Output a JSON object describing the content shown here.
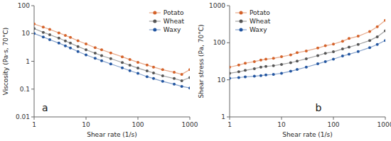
{
  "chart_data": [
    {
      "type": "line",
      "marker": "circle",
      "log": true,
      "grid": false,
      "legend": "upper right",
      "x_label": "Shear rate (1/s)",
      "y_label": "Viscosity (Pa·s, 70°C)",
      "annotation": "a",
      "x": [
        1,
        1.5,
        2,
        3,
        4,
        5,
        7,
        10,
        15,
        20,
        30,
        50,
        70,
        100,
        150,
        200,
        300,
        500,
        700,
        1000
      ],
      "series": [
        {
          "name": "Potato",
          "color": "#D4622A",
          "values": [
            22,
            17,
            14,
            10.5,
            8.5,
            7.2,
            5.5,
            4.2,
            3.1,
            2.6,
            2.0,
            1.45,
            1.15,
            0.92,
            0.73,
            0.62,
            0.5,
            0.4,
            0.34,
            0.5
          ]
        },
        {
          "name": "Wheat",
          "color": "#555555",
          "values": [
            15,
            11,
            9.0,
            6.8,
            5.4,
            4.5,
            3.4,
            2.6,
            1.95,
            1.6,
            1.25,
            0.9,
            0.72,
            0.57,
            0.45,
            0.38,
            0.3,
            0.24,
            0.2,
            0.26
          ]
        },
        {
          "name": "Waxy",
          "color": "#2255A0",
          "values": [
            10,
            7.5,
            6.0,
            4.5,
            3.6,
            3.0,
            2.25,
            1.7,
            1.28,
            1.05,
            0.8,
            0.58,
            0.46,
            0.37,
            0.28,
            0.24,
            0.19,
            0.15,
            0.125,
            0.11
          ]
        }
      ],
      "xlim": [
        1,
        1000
      ],
      "xticks": [
        1,
        10,
        100,
        1000
      ],
      "ylim": [
        0.01,
        100
      ],
      "yticks": [
        0.01,
        0.1,
        1,
        10,
        100
      ]
    },
    {
      "type": "line",
      "marker": "circle",
      "log": true,
      "grid": false,
      "legend": "upper left",
      "x_label": "Shear rate (1/s)",
      "y_label": "Shear stress (Pa, 70°C)",
      "annotation": "b",
      "x": [
        1,
        1.5,
        2,
        3,
        4,
        5,
        7,
        10,
        15,
        20,
        30,
        50,
        70,
        100,
        150,
        200,
        300,
        500,
        700,
        1000
      ],
      "series": [
        {
          "name": "Potato",
          "color": "#D4622A",
          "values": [
            22,
            25,
            28,
            31,
            34,
            36,
            38,
            42,
            47,
            54,
            60,
            72,
            83,
            92,
            110,
            130,
            150,
            200,
            270,
            400
          ]
        },
        {
          "name": "Wheat",
          "color": "#555555",
          "values": [
            15,
            16.5,
            18,
            20,
            22,
            23,
            24,
            26,
            29,
            32,
            37,
            45,
            52,
            57,
            68,
            76,
            90,
            115,
            145,
            210
          ]
        },
        {
          "name": "Waxy",
          "color": "#2255A0",
          "values": [
            11,
            11.5,
            12,
            12.5,
            13,
            13.5,
            14,
            15,
            17,
            19,
            22,
            27,
            31,
            36,
            44,
            49,
            58,
            74,
            90,
            115
          ]
        }
      ],
      "xlim": [
        1,
        1000
      ],
      "xticks": [
        1,
        10,
        100,
        1000
      ],
      "ylim": [
        1,
        1000
      ],
      "yticks": [
        1,
        10,
        100,
        1000
      ]
    }
  ]
}
